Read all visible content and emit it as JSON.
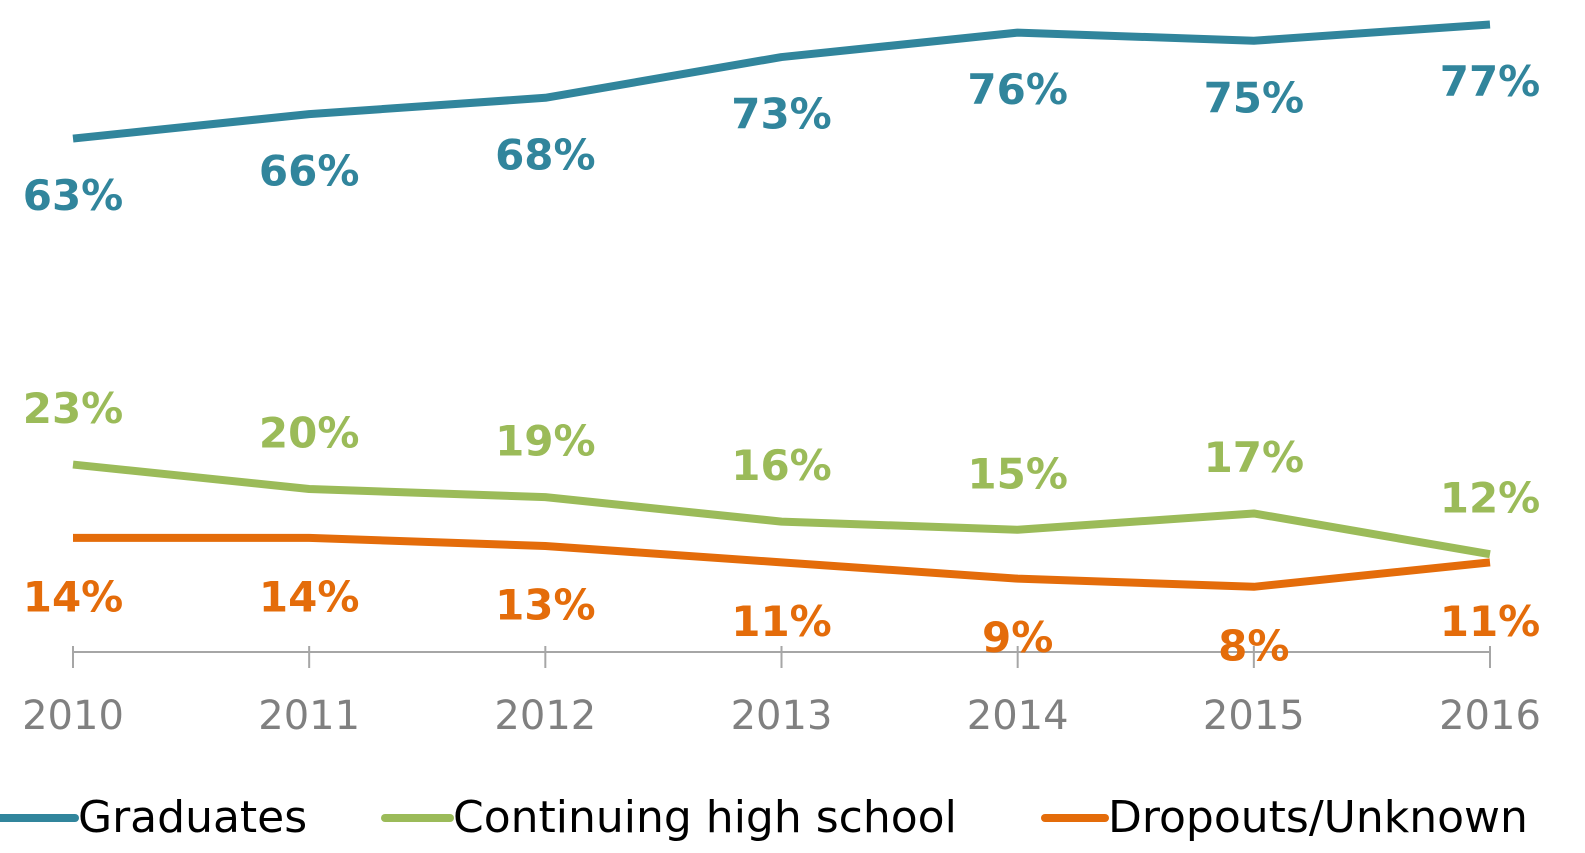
{
  "chart_data": {
    "type": "line",
    "categories": [
      "2010",
      "2011",
      "2012",
      "2013",
      "2014",
      "2015",
      "2016"
    ],
    "ylim": [
      0,
      80
    ],
    "series": [
      {
        "name": "Graduates",
        "color": "#31859c",
        "values": [
          63,
          66,
          68,
          73,
          76,
          75,
          77
        ],
        "value_labels": [
          "63%",
          "66%",
          "68%",
          "73%",
          "76%",
          "75%",
          "77%"
        ]
      },
      {
        "name": "Continuing high school",
        "color": "#9bbb59",
        "values": [
          23,
          20,
          19,
          16,
          15,
          17,
          12
        ],
        "value_labels": [
          "23%",
          "20%",
          "19%",
          "16%",
          "15%",
          "17%",
          "12%"
        ]
      },
      {
        "name": "Dropouts/Unknown",
        "color": "#e46c0a",
        "values": [
          14,
          14,
          13,
          11,
          9,
          8,
          11
        ],
        "value_labels": [
          "14%",
          "14%",
          "13%",
          "11%",
          "9%",
          "8%",
          "11%"
        ]
      }
    ]
  }
}
